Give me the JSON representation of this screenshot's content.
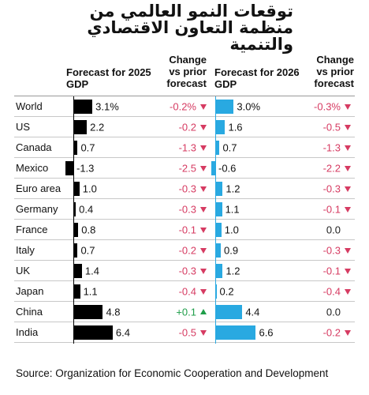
{
  "chart_data": {
    "type": "bar-table",
    "title": [
      "توقعات النمو العالمي من",
      "منظمة التعاون الاقتصادي",
      "والتنمية"
    ],
    "categories": [
      "World",
      "US",
      "Canada",
      "Mexico",
      "Euro area",
      "Germany",
      "France",
      "Italy",
      "UK",
      "Japan",
      "China",
      "India"
    ],
    "series": [
      {
        "name": "Forecast for 2025 GDP",
        "color": "#000000",
        "values": [
          3.1,
          2.2,
          0.7,
          -1.3,
          1.0,
          0.4,
          0.8,
          0.7,
          1.4,
          1.1,
          4.8,
          6.4
        ],
        "value_labels": [
          "3.1%",
          "2.2",
          "0.7",
          "-1.3",
          "1.0",
          "0.4",
          "0.8",
          "0.7",
          "1.4",
          "1.1",
          "4.8",
          "6.4"
        ]
      },
      {
        "name": "Change vs prior forecast",
        "values": [
          -0.2,
          -0.2,
          -1.3,
          -2.5,
          -0.3,
          -0.3,
          -0.1,
          -0.2,
          -0.3,
          -0.4,
          0.1,
          -0.5
        ],
        "value_labels": [
          "-0.2%",
          "-0.2",
          "-1.3",
          "-2.5",
          "-0.3",
          "-0.3",
          "-0.1",
          "-0.2",
          "-0.3",
          "-0.4",
          "+0.1",
          "-0.5"
        ]
      },
      {
        "name": "Forecast for 2026 GDP",
        "color": "#29a9e1",
        "values": [
          3.0,
          1.6,
          0.7,
          -0.6,
          1.2,
          1.1,
          1.0,
          0.9,
          1.2,
          0.2,
          4.4,
          6.6
        ],
        "value_labels": [
          "3.0%",
          "1.6",
          "0.7",
          "-0.6",
          "1.2",
          "1.1",
          "1.0",
          "0.9",
          "1.2",
          "0.2",
          "4.4",
          "6.6"
        ]
      },
      {
        "name": "Change vs prior forecast",
        "values": [
          -0.3,
          -0.5,
          -1.3,
          -2.2,
          -0.3,
          -0.1,
          0.0,
          -0.3,
          -0.1,
          -0.4,
          0.0,
          -0.2
        ],
        "value_labels": [
          "-0.3%",
          "-0.5",
          "-1.3",
          "-2.2",
          "-0.3",
          "-0.1",
          "0.0",
          "-0.3",
          "-0.1",
          "-0.4",
          "0.0",
          "-0.2"
        ]
      }
    ],
    "change_colors": {
      "negative": "#d63b62",
      "positive": "#1f9e4a",
      "zero": "#222222"
    },
    "source": "Source: Organization for Economic Cooperation and Development"
  }
}
